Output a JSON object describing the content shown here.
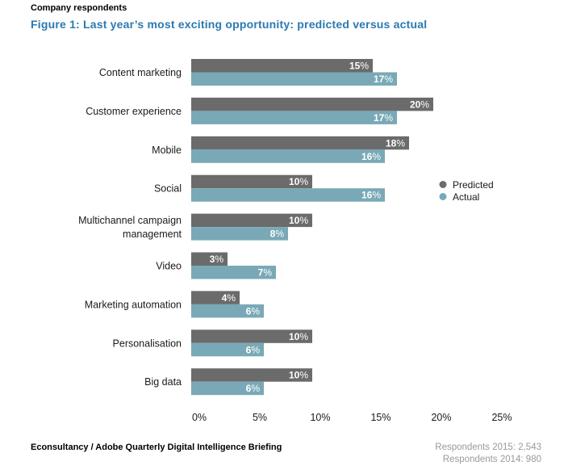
{
  "header": {
    "label": "Company respondents",
    "title": "Figure 1: Last year’s most exciting opportunity: predicted versus actual"
  },
  "footer": {
    "source": "Econsultancy / Adobe Quarterly Digital Intelligence Briefing",
    "respondents_2015": "Respondents 2015: 2,543",
    "respondents_2014": "Respondents 2014: 980"
  },
  "colors": {
    "predicted": "#6b6b6b",
    "actual": "#79a9b6"
  },
  "chart_data": {
    "type": "bar",
    "orientation": "horizontal",
    "categories": [
      "Content marketing",
      "Customer experience",
      "Mobile",
      "Social",
      "Multichannel campaign management",
      "Video",
      "Marketing automation",
      "Personalisation",
      "Big data"
    ],
    "category_lines": [
      [
        "Content marketing"
      ],
      [
        "Customer experience"
      ],
      [
        "Mobile"
      ],
      [
        "Social"
      ],
      [
        "Multichannel campaign",
        "management"
      ],
      [
        "Video"
      ],
      [
        "Marketing automation"
      ],
      [
        "Personalisation"
      ],
      [
        "Big data"
      ]
    ],
    "series": [
      {
        "name": "Predicted",
        "values": [
          15,
          20,
          18,
          10,
          10,
          3,
          4,
          10,
          10
        ]
      },
      {
        "name": "Actual",
        "values": [
          17,
          17,
          16,
          16,
          8,
          7,
          6,
          6,
          6
        ]
      }
    ],
    "xlim": [
      0,
      25
    ],
    "xticks": [
      0,
      5,
      10,
      15,
      20,
      25
    ],
    "tick_labels": [
      "0%",
      "5%",
      "10%",
      "15%",
      "20%",
      "25%"
    ],
    "value_suffix": "%",
    "legend": [
      "Predicted",
      "Actual"
    ],
    "legend_position": "right",
    "grid": false
  }
}
